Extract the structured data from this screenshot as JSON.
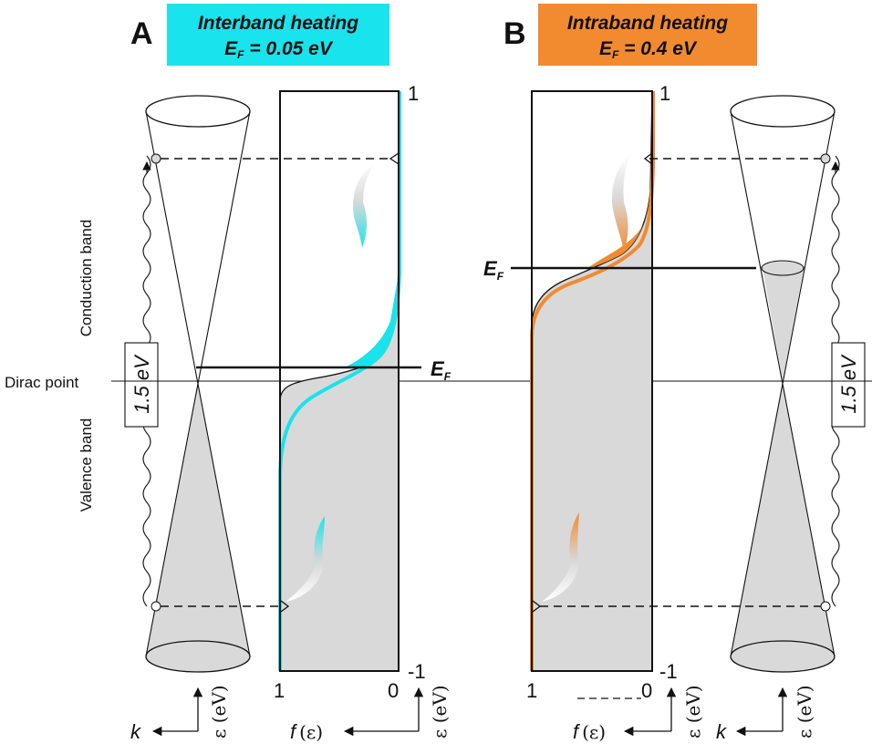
{
  "panels": {
    "a": {
      "letter": "A",
      "title_line1": "Interband heating",
      "title_line2": "E",
      "title_sub": "F",
      "title_rest": " = 0.05 eV",
      "accent": "#19e3ec"
    },
    "b": {
      "letter": "B",
      "title_line1": "Intraband heating",
      "title_line2": "E",
      "title_sub": "F",
      "title_rest": " = 0.4 eV",
      "accent": "#f28a30"
    }
  },
  "labels": {
    "dirac_point": "Dirac point",
    "conduction_band": "Conduction band",
    "valence_band": "Valence band",
    "photon_energy": "1.5 eV",
    "fermi_letter": "E",
    "fermi_sub": "F",
    "k_axis": "k",
    "energy_axis": "ε (eV)",
    "f_axis_letter": "f",
    "f_axis_arg": "(ε)"
  },
  "ticks": {
    "top": "1",
    "bottom": "-1",
    "f_left": "1",
    "f_right": "0"
  },
  "colors": {
    "fill_gray": "#d9d9d9",
    "line": "#111111"
  }
}
